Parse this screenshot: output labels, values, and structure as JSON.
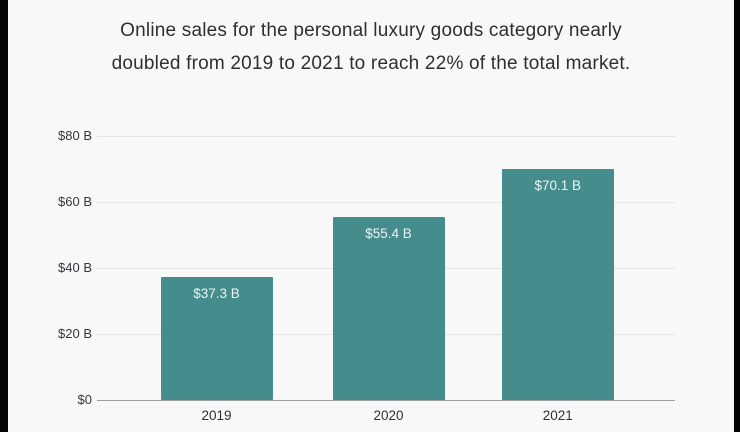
{
  "title": {
    "line1": "Online sales for the personal luxury goods category nearly",
    "line2": "doubled from 2019 to 2021 to reach 22% of the total market."
  },
  "chart_data": {
    "type": "bar",
    "title": "Online sales for the personal luxury goods category nearly doubled from 2019 to 2021 to reach 22% of the total market.",
    "categories": [
      "2019",
      "2020",
      "2021"
    ],
    "values": [
      37.3,
      55.4,
      70.1
    ],
    "value_labels": [
      "$37.3 B",
      "$55.4 B",
      "$70.1 B"
    ],
    "ylim": [
      0,
      80
    ],
    "yticks": [
      {
        "value": 0,
        "label": "$0"
      },
      {
        "value": 20,
        "label": "$20 B"
      },
      {
        "value": 40,
        "label": "$40 B"
      },
      {
        "value": 60,
        "label": "$60 B"
      },
      {
        "value": 80,
        "label": "$80 B"
      }
    ],
    "grid": true,
    "legend": false,
    "bar_color": "#448d8c",
    "value_label_color": "#eef3f2"
  }
}
